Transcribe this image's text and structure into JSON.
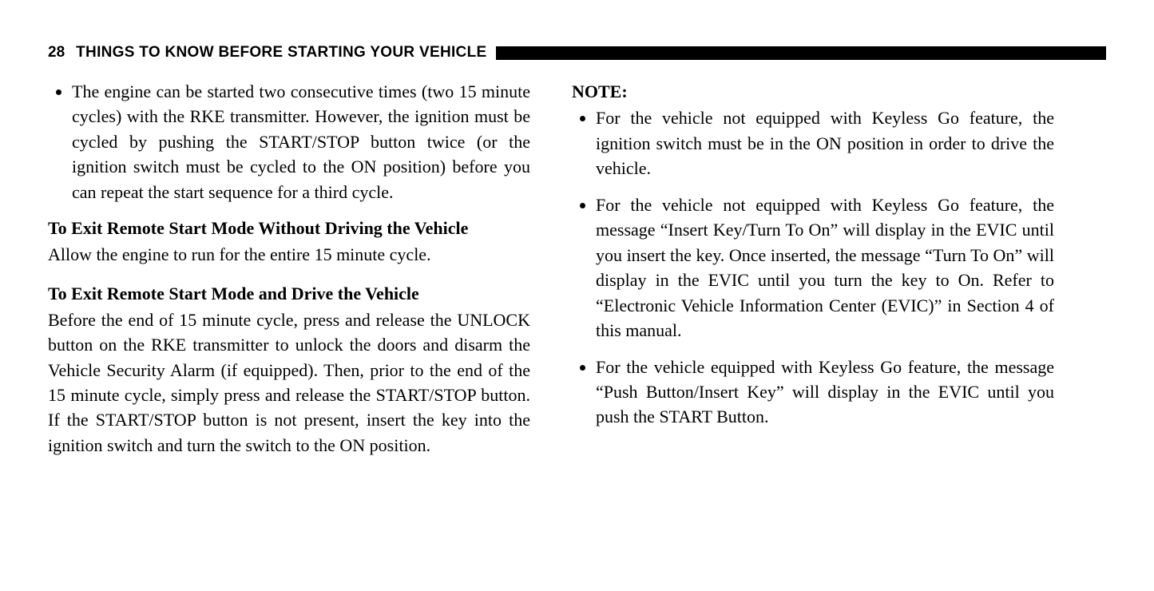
{
  "header": {
    "page_number": "28",
    "section_title": "THINGS TO KNOW BEFORE STARTING YOUR VEHICLE",
    "bar_color": "#000000"
  },
  "typography": {
    "body_font": "Palatino Linotype",
    "header_font": "Arial",
    "body_size_pt": 16,
    "header_size_pt": 14,
    "text_color": "#000000",
    "background_color": "#ffffff"
  },
  "left_column": {
    "top_bullet": "The engine can be started two consecutive times (two 15 minute cycles) with the RKE transmitter. However, the ignition must be cycled by pushing the START/STOP button twice (or the ignition switch must be cycled to the ON position) before you can repeat the start sequence for a third cycle.",
    "section1": {
      "heading": "To Exit Remote Start Mode Without Driving the Vehicle",
      "body": "Allow the engine to run for the entire 15 minute cycle."
    },
    "section2": {
      "heading": "To Exit Remote Start Mode and Drive the Vehicle",
      "body": "Before the end of 15 minute cycle, press and release the UNLOCK button on the RKE transmitter to unlock the doors and disarm the Vehicle Security Alarm (if equipped). Then, prior to the end of the 15 minute cycle, simply press and release the START/STOP button. If the START/STOP button is not present, insert the key into the ignition switch and turn the switch to the ON position."
    }
  },
  "right_column": {
    "note_label": "NOTE:",
    "bullets": [
      "For the vehicle not equipped with Keyless Go feature, the ignition switch must be in the ON position in order to drive the vehicle.",
      "For the vehicle not equipped with Keyless Go feature, the message “Insert Key/Turn To On” will display in the EVIC until you insert the key. Once inserted, the message “Turn To On” will display in the EVIC until you turn the key to On. Refer to “Electronic Vehicle Information Center (EVIC)” in Section 4 of this manual.",
      "For the vehicle equipped with Keyless Go feature, the message “Push Button/Insert Key” will display in the EVIC until you push the START Button."
    ]
  }
}
